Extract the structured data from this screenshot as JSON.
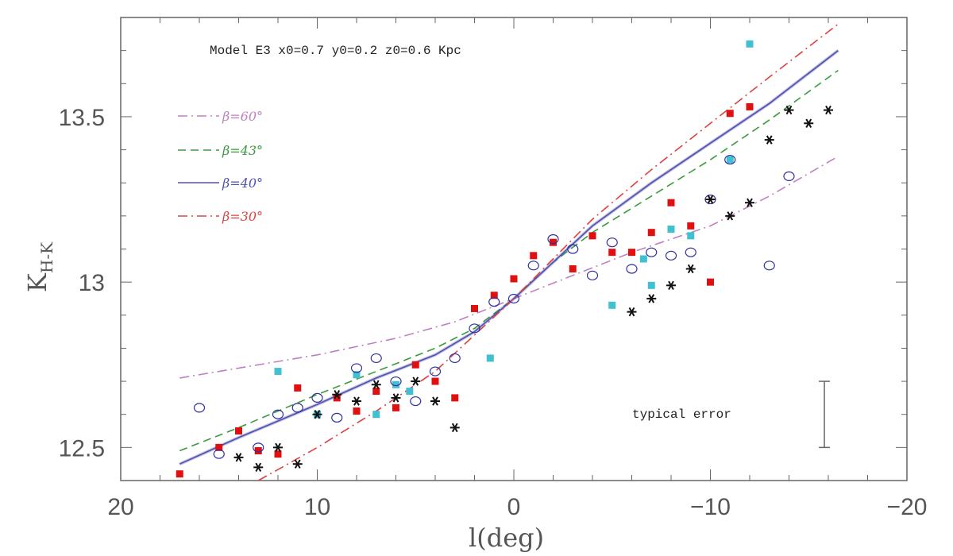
{
  "chart_data": {
    "type": "scatter",
    "title": "Model E3 x0=0.7 y0=0.2 z0=0.6 Kpc",
    "xlabel": "l(deg)",
    "ylabel": "K",
    "ylabel_sub": "H-K",
    "xlim": [
      20,
      -20
    ],
    "ylim": [
      12.4,
      13.8
    ],
    "x_ticks": [
      20,
      10,
      0,
      -10,
      -20
    ],
    "x_tick_labels": [
      "20",
      "10",
      "0",
      "−10",
      "−20"
    ],
    "y_ticks": [
      12.5,
      13,
      13.5
    ],
    "y_tick_labels": [
      "12.5",
      "13",
      "13.5"
    ],
    "grid": false,
    "legend_position": "upper-left",
    "annotation": "typical error",
    "error_bar": {
      "x": -15.8,
      "y_low": 12.5,
      "y_high": 12.7
    },
    "lines": [
      {
        "name": "β=60°",
        "color": "#c080c0",
        "style": "dashdot",
        "x": [
          17,
          14,
          10,
          6,
          3,
          0,
          -3,
          -6,
          -10,
          -13,
          -16.5
        ],
        "y": [
          12.71,
          12.74,
          12.78,
          12.83,
          12.88,
          12.95,
          13.02,
          13.09,
          13.17,
          13.26,
          13.38
        ]
      },
      {
        "name": "β=43°",
        "color": "#3a9a3a",
        "style": "dash",
        "x": [
          17,
          14,
          10,
          7,
          4,
          2,
          0,
          -2,
          -4,
          -7,
          -10,
          -13,
          -16.5
        ],
        "y": [
          12.49,
          12.56,
          12.66,
          12.73,
          12.8,
          12.86,
          12.95,
          13.06,
          13.15,
          13.26,
          13.37,
          13.49,
          13.64
        ]
      },
      {
        "name": "β=40°",
        "color": "#5050b0",
        "style": "solid",
        "x": [
          17,
          14,
          10,
          7,
          4,
          2,
          0,
          -2,
          -4,
          -7,
          -10,
          -13,
          -16.5
        ],
        "y": [
          12.45,
          12.53,
          12.63,
          12.71,
          12.78,
          12.85,
          12.95,
          13.06,
          13.17,
          13.3,
          13.42,
          13.54,
          13.7
        ]
      },
      {
        "name": "β=30°",
        "color": "#e04040",
        "style": "dashdot",
        "x": [
          13,
          10,
          7,
          4,
          2,
          0,
          -2,
          -4,
          -7,
          -10,
          -13,
          -16.5
        ],
        "y": [
          12.4,
          12.5,
          12.61,
          12.73,
          12.84,
          12.95,
          13.07,
          13.19,
          13.34,
          13.48,
          13.62,
          13.78
        ]
      }
    ],
    "scatter_series": [
      {
        "marker": "square-red",
        "color": "#e01010",
        "points": [
          [
            17,
            12.42
          ],
          [
            15,
            12.5
          ],
          [
            14,
            12.55
          ],
          [
            13,
            12.49
          ],
          [
            12,
            12.48
          ],
          [
            11,
            12.68
          ],
          [
            10,
            12.6
          ],
          [
            9,
            12.65
          ],
          [
            8,
            12.61
          ],
          [
            7,
            12.67
          ],
          [
            6,
            12.62
          ],
          [
            5,
            12.75
          ],
          [
            4,
            12.7
          ],
          [
            3,
            12.65
          ],
          [
            2,
            12.92
          ],
          [
            1,
            12.96
          ],
          [
            0,
            13.01
          ],
          [
            -1,
            13.08
          ],
          [
            -2,
            13.12
          ],
          [
            -3,
            13.04
          ],
          [
            -4,
            13.14
          ],
          [
            -5,
            13.09
          ],
          [
            -6,
            13.09
          ],
          [
            -7,
            13.15
          ],
          [
            -8,
            13.24
          ],
          [
            -9,
            13.17
          ],
          [
            -10,
            13.0
          ],
          [
            -11,
            13.51
          ],
          [
            -12,
            13.53
          ]
        ]
      },
      {
        "marker": "square-cyan",
        "color": "#40c0d0",
        "points": [
          [
            12,
            12.73
          ],
          [
            10,
            12.6
          ],
          [
            8,
            12.72
          ],
          [
            7,
            12.6
          ],
          [
            6,
            12.69
          ],
          [
            5.3,
            12.67
          ],
          [
            1.2,
            12.77
          ],
          [
            -5,
            12.93
          ],
          [
            -6.6,
            13.07
          ],
          [
            -7,
            12.99
          ],
          [
            -8,
            13.16
          ],
          [
            -9,
            13.14
          ],
          [
            -11,
            13.37
          ],
          [
            -12,
            13.72
          ]
        ]
      },
      {
        "marker": "circle-open",
        "color": "#3030a0",
        "points": [
          [
            16,
            12.62
          ],
          [
            15,
            12.48
          ],
          [
            13,
            12.5
          ],
          [
            12,
            12.6
          ],
          [
            11,
            12.62
          ],
          [
            10,
            12.65
          ],
          [
            9,
            12.59
          ],
          [
            8,
            12.74
          ],
          [
            7,
            12.77
          ],
          [
            6,
            12.7
          ],
          [
            5,
            12.64
          ],
          [
            4,
            12.73
          ],
          [
            3,
            12.77
          ],
          [
            2,
            12.86
          ],
          [
            1,
            12.94
          ],
          [
            0,
            12.95
          ],
          [
            -1,
            13.05
          ],
          [
            -2,
            13.13
          ],
          [
            -3,
            13.1
          ],
          [
            -4,
            13.02
          ],
          [
            -5,
            13.12
          ],
          [
            -6,
            13.04
          ],
          [
            -7,
            13.09
          ],
          [
            -8,
            13.08
          ],
          [
            -9,
            13.09
          ],
          [
            -10,
            13.25
          ],
          [
            -11,
            13.37
          ],
          [
            -13,
            13.05
          ],
          [
            -14,
            13.32
          ]
        ]
      },
      {
        "marker": "asterisk",
        "color": "#111111",
        "points": [
          [
            14,
            12.47
          ],
          [
            13,
            12.44
          ],
          [
            12,
            12.5
          ],
          [
            11,
            12.45
          ],
          [
            10,
            12.6
          ],
          [
            9,
            12.66
          ],
          [
            8,
            12.64
          ],
          [
            7,
            12.69
          ],
          [
            6,
            12.65
          ],
          [
            5,
            12.7
          ],
          [
            4,
            12.64
          ],
          [
            3,
            12.56
          ],
          [
            -6,
            12.91
          ],
          [
            -7,
            12.95
          ],
          [
            -8,
            12.99
          ],
          [
            -9,
            13.04
          ],
          [
            -10,
            13.25
          ],
          [
            -11,
            13.2
          ],
          [
            -12,
            13.24
          ],
          [
            -13,
            13.43
          ],
          [
            -14,
            13.52
          ],
          [
            -15,
            13.48
          ],
          [
            -16,
            13.52
          ]
        ]
      }
    ]
  }
}
